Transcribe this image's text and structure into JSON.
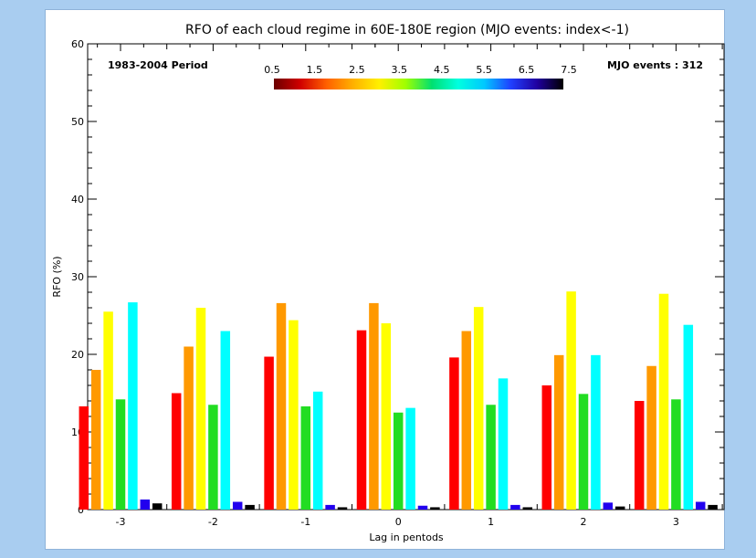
{
  "chart_data": {
    "type": "bar",
    "title": "RFO of each cloud regime in 60E-180E region (MJO events: index<-1)",
    "annotations": {
      "period": "1983-2004 Period",
      "events": "MJO events : 312"
    },
    "xlabel": "Lag in pentods",
    "ylabel": "RFO (%)",
    "categories": [
      "-3",
      "-2",
      "-1",
      "0",
      "1",
      "2",
      "3"
    ],
    "ylim": [
      0,
      60
    ],
    "y_ticks": [
      "0",
      "10",
      "20",
      "30",
      "40",
      "50",
      "60"
    ],
    "colorbar": {
      "labels": [
        "0.5",
        "1.5",
        "2.5",
        "3.5",
        "4.5",
        "5.5",
        "6.5",
        "7.5"
      ],
      "stops": [
        "#6b0000",
        "#d00000",
        "#ff6000",
        "#ffb000",
        "#fff000",
        "#a0ff00",
        "#00e070",
        "#00ffe0",
        "#00c8ff",
        "#2040ff",
        "#2000a0",
        "#000000"
      ]
    },
    "series": [
      {
        "color": "#ff0000",
        "values": [
          13.3,
          15.0,
          19.7,
          23.1,
          19.6,
          16.0,
          14.0
        ]
      },
      {
        "color": "#ff9900",
        "values": [
          18.0,
          21.0,
          26.6,
          26.6,
          23.0,
          19.9,
          18.5
        ]
      },
      {
        "color": "#ffff00",
        "values": [
          25.5,
          26.0,
          24.4,
          24.0,
          26.1,
          28.1,
          27.8
        ]
      },
      {
        "color": "#22dd22",
        "values": [
          14.2,
          13.5,
          13.3,
          12.5,
          13.5,
          14.9,
          14.2
        ]
      },
      {
        "color": "#00ffff",
        "values": [
          26.7,
          23.0,
          15.2,
          13.1,
          16.9,
          19.9,
          23.8
        ]
      },
      {
        "color": "#2200ee",
        "values": [
          1.3,
          1.0,
          0.6,
          0.5,
          0.6,
          0.9,
          1.0
        ]
      },
      {
        "color": "#000000",
        "values": [
          0.8,
          0.6,
          0.3,
          0.3,
          0.3,
          0.4,
          0.6
        ]
      }
    ]
  }
}
